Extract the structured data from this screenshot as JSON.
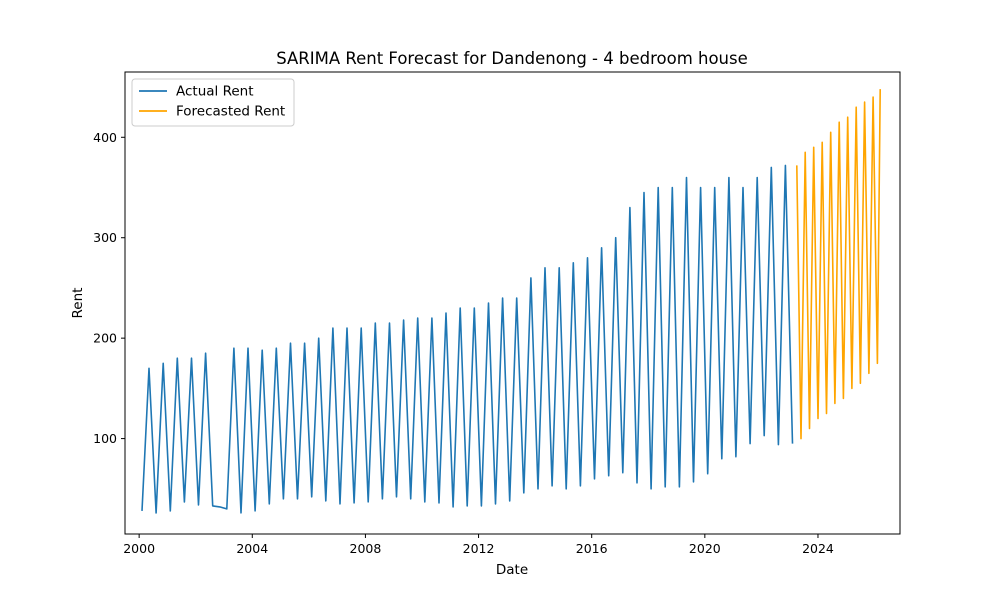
{
  "chart_data": {
    "type": "line",
    "title": "SARIMA Rent Forecast for Dandenong - 4 bedroom house",
    "xlabel": "Date",
    "ylabel": "Rent",
    "xlim": [
      1999.5,
      2026.9
    ],
    "ylim": [
      5,
      465
    ],
    "x_ticks": [
      2000,
      2004,
      2008,
      2012,
      2016,
      2020,
      2024
    ],
    "y_ticks": [
      100,
      200,
      300,
      400
    ],
    "grid": false,
    "legend_position": "top-left",
    "series": [
      {
        "name": "Actual Rent",
        "color": "#1f77b4",
        "x": [
          2000.1,
          2000.35,
          2000.6,
          2000.85,
          2001.1,
          2001.35,
          2001.6,
          2001.85,
          2002.1,
          2002.35,
          2002.6,
          2002.85,
          2003.1,
          2003.35,
          2003.6,
          2003.85,
          2004.1,
          2004.35,
          2004.6,
          2004.85,
          2005.1,
          2005.35,
          2005.6,
          2005.85,
          2006.1,
          2006.35,
          2006.6,
          2006.85,
          2007.1,
          2007.35,
          2007.6,
          2007.85,
          2008.1,
          2008.35,
          2008.6,
          2008.85,
          2009.1,
          2009.35,
          2009.6,
          2009.85,
          2010.1,
          2010.35,
          2010.6,
          2010.85,
          2011.1,
          2011.35,
          2011.6,
          2011.85,
          2012.1,
          2012.35,
          2012.6,
          2012.85,
          2013.1,
          2013.35,
          2013.6,
          2013.85,
          2014.1,
          2014.35,
          2014.6,
          2014.85,
          2015.1,
          2015.35,
          2015.6,
          2015.85,
          2016.1,
          2016.35,
          2016.6,
          2016.85,
          2017.1,
          2017.35,
          2017.6,
          2017.85,
          2018.1,
          2018.35,
          2018.6,
          2018.85,
          2019.1,
          2019.35,
          2019.6,
          2019.85,
          2020.1,
          2020.35,
          2020.6,
          2020.85,
          2021.1,
          2021.35,
          2021.6,
          2021.85,
          2022.1,
          2022.35,
          2022.6,
          2022.85,
          2023.1
        ],
        "values": [
          28,
          170,
          26,
          175,
          28,
          180,
          37,
          180,
          34,
          185,
          33,
          32,
          30,
          190,
          26,
          190,
          28,
          188,
          35,
          190,
          40,
          195,
          40,
          195,
          42,
          200,
          38,
          210,
          35,
          210,
          36,
          210,
          37,
          215,
          40,
          215,
          42,
          218,
          40,
          220,
          37,
          220,
          36,
          225,
          32,
          230,
          33,
          230,
          33,
          235,
          35,
          240,
          38,
          240,
          46,
          260,
          50,
          270,
          53,
          270,
          50,
          275,
          53,
          280,
          60,
          290,
          63,
          300,
          66,
          330,
          56,
          345,
          50,
          350,
          52,
          350,
          52,
          360,
          57,
          350,
          65,
          350,
          80,
          360,
          82,
          350,
          95,
          360,
          103,
          370,
          94,
          372,
          95
        ]
      },
      {
        "name": "Forecasted Rent",
        "color": "#ffa500",
        "x": [
          2023.25,
          2023.4,
          2023.55,
          2023.7,
          2023.85,
          2024.0,
          2024.15,
          2024.3,
          2024.45,
          2024.6,
          2024.75,
          2024.9,
          2025.05,
          2025.2,
          2025.35,
          2025.5,
          2025.65,
          2025.8,
          2025.95,
          2026.1,
          2026.2
        ],
        "values": [
          372,
          100,
          385,
          110,
          390,
          120,
          395,
          125,
          405,
          135,
          415,
          140,
          420,
          150,
          430,
          155,
          435,
          165,
          440,
          175,
          448
        ]
      }
    ]
  }
}
